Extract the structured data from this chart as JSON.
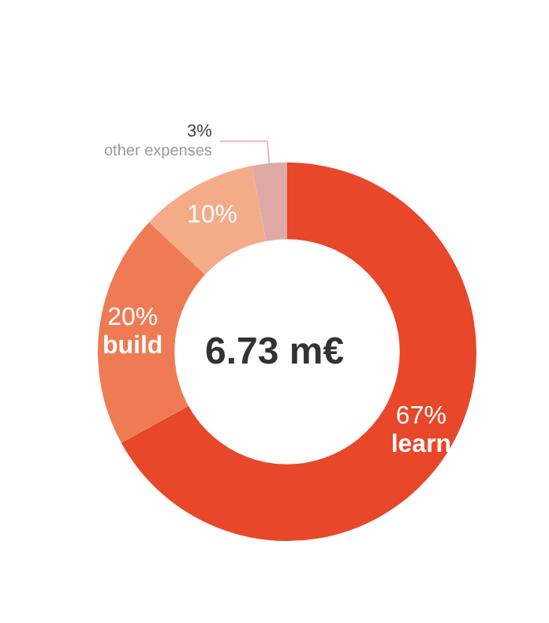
{
  "chart_data": {
    "type": "donut",
    "title": "6.73 m€",
    "categories": [
      "learn",
      "build",
      null,
      "other expenses"
    ],
    "values": [
      67,
      20,
      10,
      3
    ],
    "value_labels": [
      "67%",
      "20%",
      "10%",
      "3%"
    ],
    "colors": [
      "#e8472a",
      "#ef7b55",
      "#f4ab88",
      "#dfaaa5"
    ],
    "legend": false
  }
}
